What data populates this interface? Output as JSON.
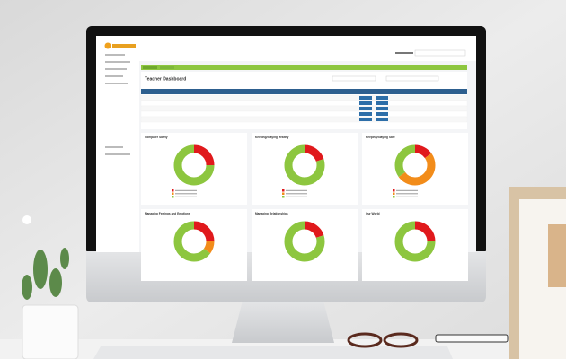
{
  "screen": {
    "title": "Teacher Dashboard",
    "cards": [
      {
        "title": "Computer Safety",
        "values": [
          25,
          0,
          75
        ]
      },
      {
        "title": "Keeping/Staying Healthy",
        "values": [
          20,
          0,
          80
        ]
      },
      {
        "title": "Keeping/Staying Safe",
        "values": [
          15,
          50,
          35
        ]
      },
      {
        "title": "Managing Feelings and Emotions",
        "values": [
          25,
          10,
          65
        ]
      },
      {
        "title": "Managing Relationships",
        "values": [
          20,
          0,
          80
        ]
      },
      {
        "title": "Our World",
        "values": [
          25,
          0,
          75
        ]
      }
    ]
  }
}
